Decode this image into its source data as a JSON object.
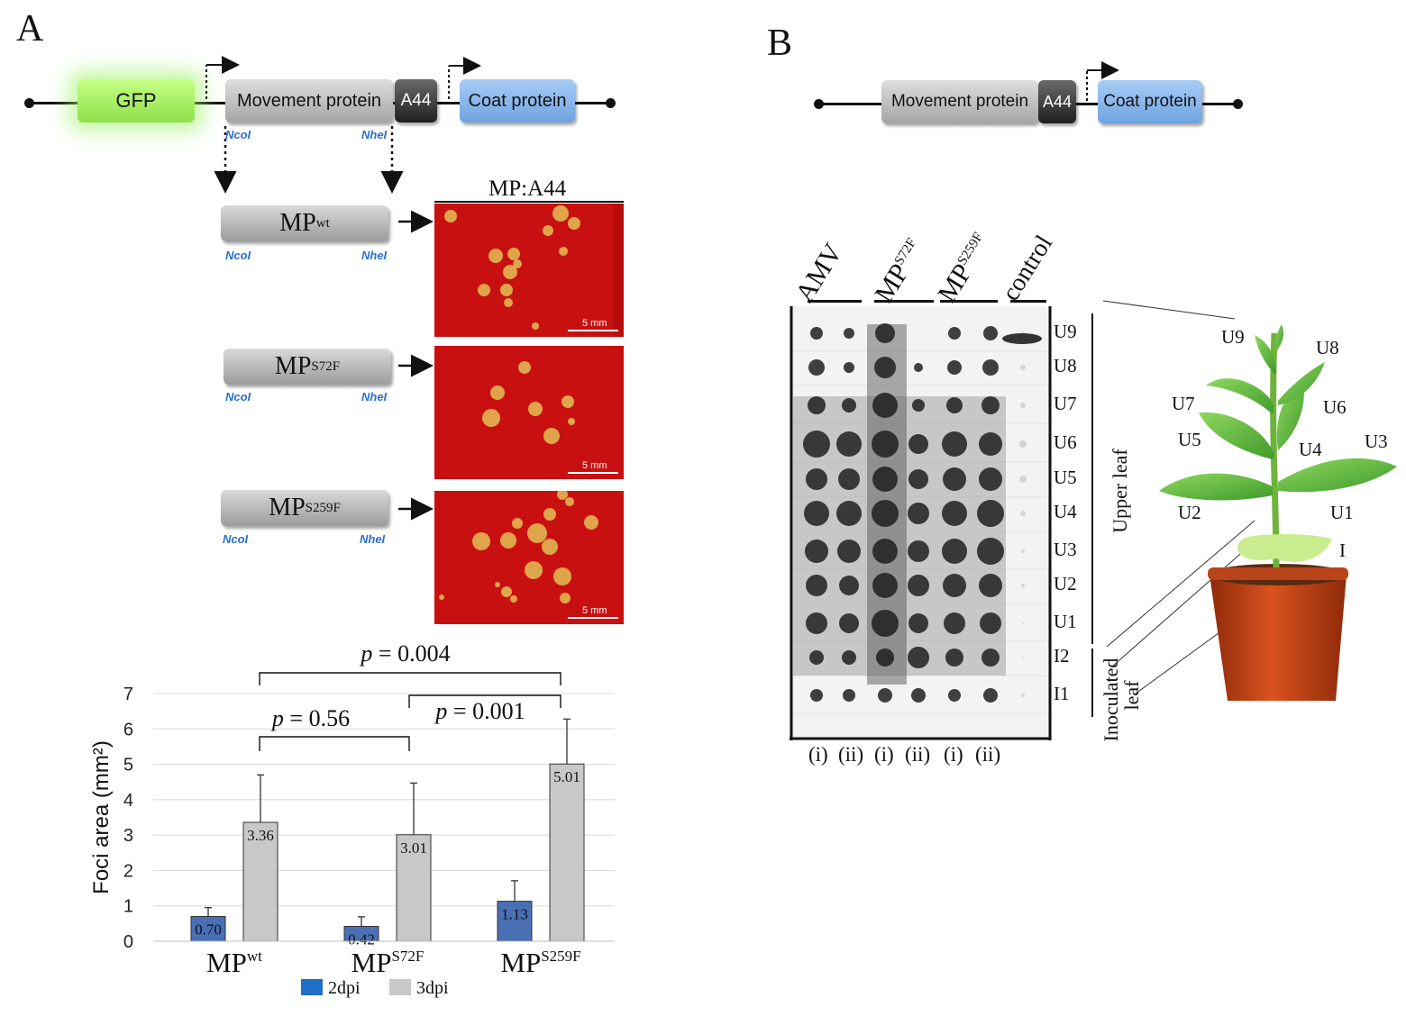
{
  "panel_a": {
    "letter": "A",
    "construct": {
      "gfp": "GFP",
      "movement_protein": "Movement protein",
      "a44": "A44",
      "coat_protein": "Coat protein",
      "site_left": "NcoI",
      "site_right": "NheI"
    },
    "micrograph_title": "MP:A44",
    "variants": [
      {
        "base": "MP",
        "sup": "wt"
      },
      {
        "base": "MP",
        "sup": "S72F"
      },
      {
        "base": "MP",
        "sup": "S259F"
      }
    ],
    "scale_label": "5 mm",
    "colors": {
      "gfp": "#a6f05a",
      "mp": "#b5b5b5",
      "a44": "#3a3a3a",
      "coat": "#8ab8ec",
      "micrograph": "#c91010",
      "foci": "#e0a44a"
    }
  },
  "chart_data": {
    "type": "bar",
    "categories": [
      "MPwt",
      "MPS72F",
      "MPS259F"
    ],
    "category_labels": [
      {
        "base": "MP",
        "sup": "wt"
      },
      {
        "base": "MP",
        "sup": "S72F"
      },
      {
        "base": "MP",
        "sup": "S259F"
      }
    ],
    "series": [
      {
        "name": "2dpi",
        "values": [
          0.7,
          0.42,
          1.13
        ],
        "errors": [
          0.25,
          0.27,
          0.58
        ],
        "color": "#4a6fb5"
      },
      {
        "name": "3dpi",
        "values": [
          3.36,
          3.01,
          5.01
        ],
        "errors": [
          1.34,
          1.46,
          1.27
        ],
        "color": "#c8c8c8"
      }
    ],
    "value_labels": [
      [
        "0.70",
        "0.42",
        "1.13"
      ],
      [
        "3.36",
        "3.01",
        "5.01"
      ]
    ],
    "ylabel": "Foci area (mm²)",
    "ylim": [
      0,
      7
    ],
    "yticks": [
      "0",
      "1",
      "2",
      "3",
      "4",
      "5",
      "6",
      "7"
    ],
    "grid": true,
    "legend_position": "bottom",
    "annotations": [
      {
        "text_p": "p",
        "text_rest": " = 0.004"
      },
      {
        "text_p": "p",
        "text_rest": " = 0.56"
      },
      {
        "text_p": "p",
        "text_rest": " = 0.001"
      }
    ]
  },
  "panel_b": {
    "letter": "B",
    "construct": {
      "movement_protein": "Movement protein",
      "a44": "A44",
      "coat_protein": "Coat protein"
    },
    "columns": {
      "amv": "AMV",
      "mp_s72f": {
        "base": "MP",
        "sup": "S72F"
      },
      "mp_s259f": {
        "base": "MP",
        "sup": "S259F"
      },
      "control": "control"
    },
    "rows": [
      "U9",
      "U8",
      "U7",
      "U6",
      "U5",
      "U4",
      "U3",
      "U2",
      "U1",
      "I2",
      "I1"
    ],
    "replicates": [
      "(i)",
      "(ii)",
      "(i)",
      "(ii)",
      "(i)",
      "(ii)"
    ],
    "upper_leaf": "Upper leaf",
    "inoculated_leaf_line1": "Inoculated",
    "inoculated_leaf_line2": "leaf",
    "plant_labels": {
      "U9": "U9",
      "U8": "U8",
      "U7": "U7",
      "U6": "U6",
      "U5": "U5",
      "U4": "U4",
      "U3": "U3",
      "U2": "U2",
      "U1": "U1",
      "I": "I"
    }
  }
}
